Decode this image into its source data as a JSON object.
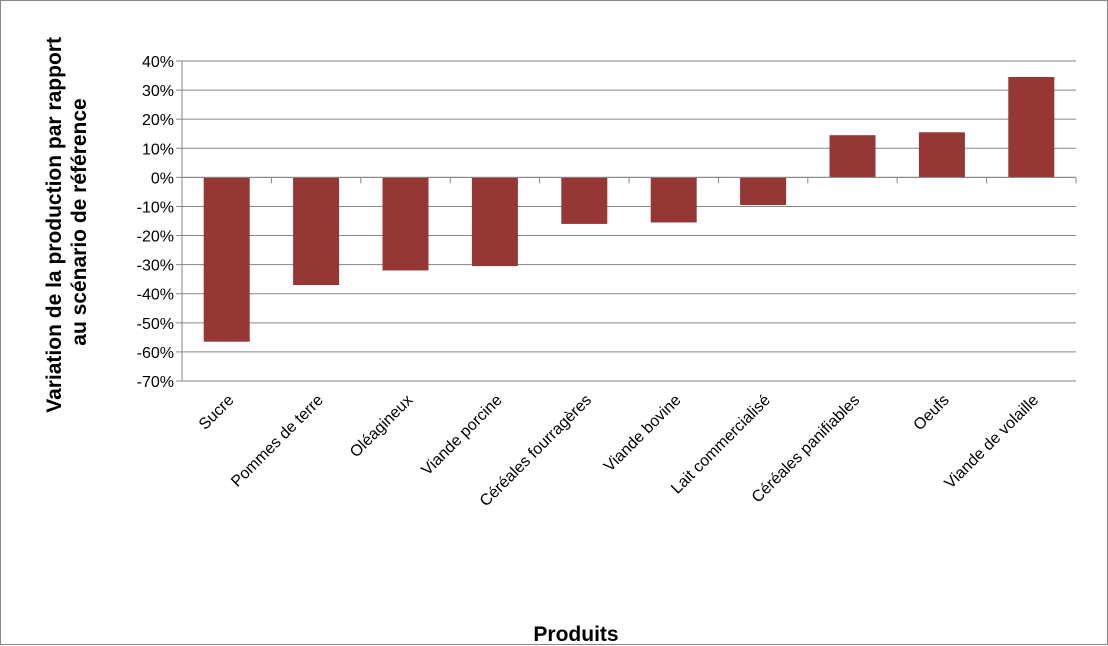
{
  "chart_data": {
    "type": "bar",
    "title": "",
    "xlabel": "Produits",
    "ylabel_lines": [
      "Variation de la production par rapport",
      "au scénario de référence"
    ],
    "categories": [
      "Sucre",
      "Pommes de terre",
      "Oléagineux",
      "Viande porcine",
      "Céréales fourragères",
      "Viande bovine",
      "Lait commercialisé",
      "Céréales panifiables",
      "Oeufs",
      "Viande de volaille"
    ],
    "values": [
      -56.5,
      -37.0,
      -32.0,
      -30.5,
      -16.0,
      -15.5,
      -9.5,
      14.5,
      15.5,
      34.5
    ],
    "ylim": [
      -70,
      40
    ],
    "yticks": [
      40,
      30,
      20,
      10,
      0,
      -10,
      -20,
      -30,
      -40,
      -50,
      -60,
      -70
    ],
    "ytick_format": "percent",
    "grid": true,
    "legend": "none",
    "bar_color": "#953735"
  }
}
